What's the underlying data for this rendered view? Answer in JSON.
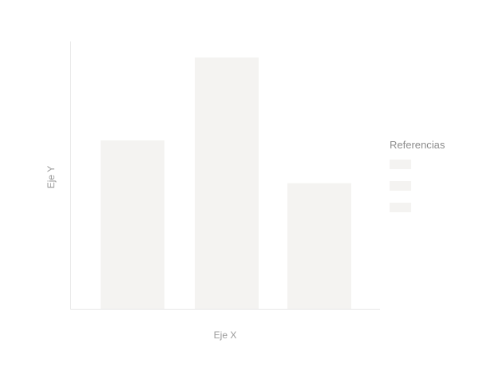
{
  "chart_data": {
    "type": "bar",
    "title": "",
    "xlabel": "Eje X",
    "ylabel": "Eje Y",
    "categories": [
      "",
      "",
      ""
    ],
    "values": [
      63,
      94,
      47
    ],
    "ylim": [
      0,
      100
    ],
    "grid": false,
    "legend": {
      "title": "Referencias",
      "placement": "right",
      "entries": [
        "",
        "",
        ""
      ]
    }
  },
  "colors": {
    "bar": "#f4f3f1",
    "swatch": "#f4f3f1",
    "axis": "#e6e6e6",
    "axis_title": "#999999",
    "legend_title": "#8c8c8c"
  }
}
